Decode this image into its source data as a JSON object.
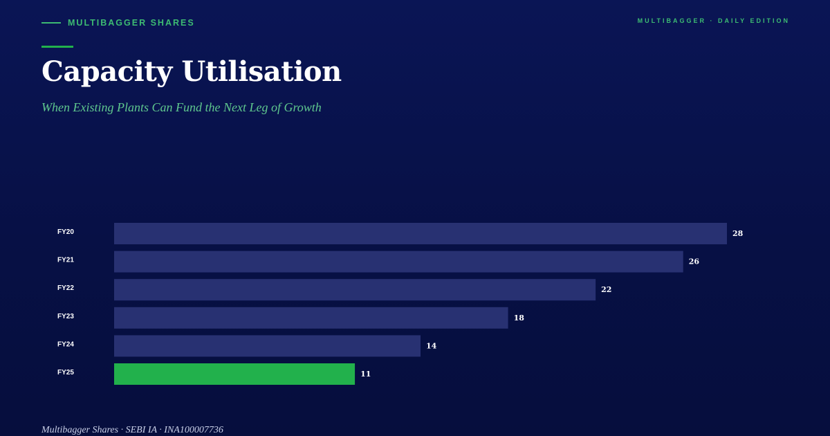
{
  "header": {
    "brand": "MULTIBAGGER SHARES",
    "edition": "MULTIBAGGER · DAILY EDITION"
  },
  "title": "Capacity Utilisation",
  "subtitle": "When Existing Plants Can Fund the Next Leg of Growth",
  "footer": "Multibagger Shares · SEBI IA · INA100007736",
  "colors": {
    "background": "#0a1555",
    "bar": "#283172",
    "highlight_bar": "#22b14c",
    "accent": "#3dbb72"
  },
  "chart_data": {
    "type": "bar",
    "orientation": "horizontal",
    "categories": [
      "FY20",
      "FY21",
      "FY22",
      "FY23",
      "FY24",
      "FY25"
    ],
    "values": [
      28,
      26,
      22,
      18,
      14,
      11
    ],
    "highlight": "FY25",
    "xlim": [
      0,
      28
    ],
    "grid": false,
    "legend": "none"
  }
}
